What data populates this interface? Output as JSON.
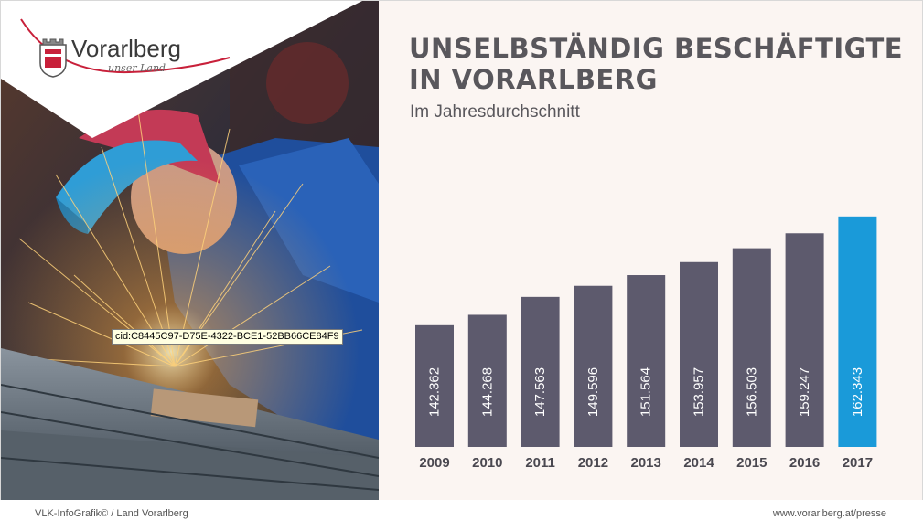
{
  "logo": {
    "name": "Vorarlberg",
    "tagline": "unser Land"
  },
  "photo": {
    "cid_label": "cid:C8445C97-D75E-4322-BCE1-52BB66CE84F9"
  },
  "chart_data": {
    "type": "bar",
    "title": "UNSELBSTÄNDIG BESCHÄFTIGTE IN VORARLBERG",
    "title_lines": [
      "UNSELBSTÄNDIG BESCHÄFTIGTE",
      "IN VORARLBERG"
    ],
    "subtitle": "Im Jahresdurchschnitt",
    "categories": [
      "2009",
      "2010",
      "2011",
      "2012",
      "2013",
      "2014",
      "2015",
      "2016",
      "2017"
    ],
    "values": [
      142362,
      144268,
      147563,
      149596,
      151564,
      153957,
      156503,
      159247,
      162343
    ],
    "value_labels": [
      "142.362",
      "144.268",
      "147.563",
      "149.596",
      "151.564",
      "153.957",
      "156.503",
      "159.247",
      "162.343"
    ],
    "ylim": [
      120000,
      165000
    ],
    "grid": false,
    "legend": "none",
    "bar_color": "#5d5a6d",
    "highlight_color": "#1a9ad9",
    "highlight_category": "2017"
  },
  "footer": {
    "left": "VLK-InfoGrafik© / Land Vorarlberg",
    "right": "www.vorarlberg.at/presse"
  }
}
